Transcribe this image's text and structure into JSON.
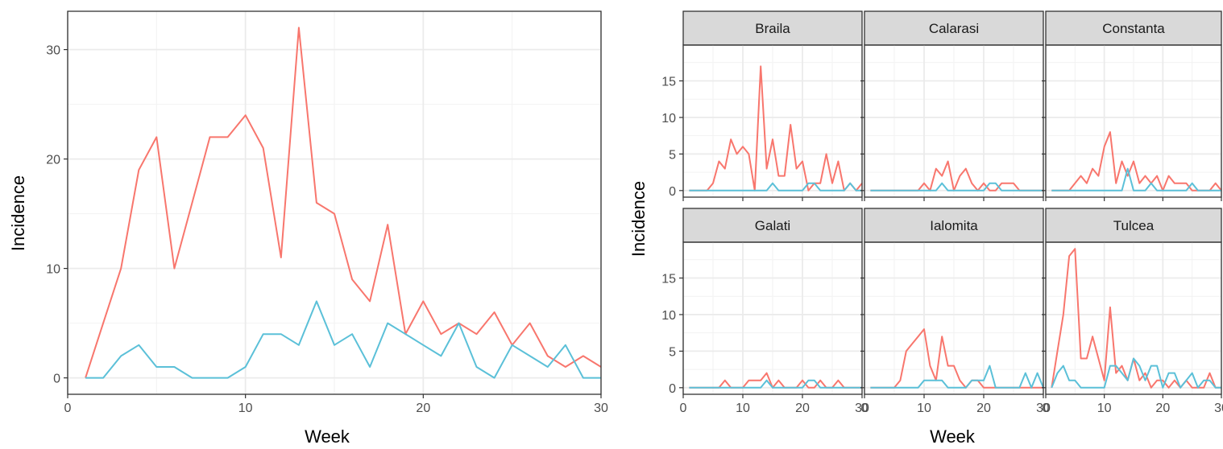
{
  "chart_data": [
    {
      "type": "line",
      "panel": "overall",
      "xlabel": "Week",
      "ylabel": "Incidence",
      "xlim": [
        0,
        30
      ],
      "ylim": [
        0,
        32
      ],
      "x_ticks": [
        0,
        10,
        20,
        30
      ],
      "y_ticks": [
        0,
        10,
        20,
        30
      ],
      "grid": true,
      "x": [
        1,
        2,
        3,
        4,
        5,
        6,
        7,
        8,
        9,
        10,
        11,
        12,
        13,
        14,
        15,
        16,
        17,
        18,
        19,
        20,
        21,
        22,
        23,
        24,
        25,
        26,
        27,
        28,
        29,
        30
      ],
      "series": [
        {
          "color": "#f8766d",
          "values": [
            0,
            5,
            10,
            19,
            22,
            10,
            16,
            22,
            22,
            24,
            21,
            11,
            32,
            16,
            15,
            9,
            7,
            14,
            4,
            7,
            4,
            5,
            4,
            6,
            3,
            5,
            2,
            1,
            2,
            1
          ]
        },
        {
          "color": "#5bc0d8",
          "values": [
            0,
            0,
            2,
            3,
            1,
            1,
            0,
            0,
            0,
            1,
            4,
            4,
            3,
            7,
            3,
            4,
            1,
            5,
            4,
            3,
            2,
            5,
            1,
            0,
            3,
            2,
            1,
            3,
            0,
            0
          ]
        }
      ]
    },
    {
      "type": "line",
      "panel": "faceted",
      "xlabel": "Week",
      "ylabel": "Incidence",
      "xlim": [
        0,
        30
      ],
      "ylim": [
        0,
        19
      ],
      "x_ticks": [
        0,
        10,
        20,
        30
      ],
      "y_ticks": [
        0,
        5,
        10,
        15
      ],
      "grid": true,
      "x": [
        1,
        2,
        3,
        4,
        5,
        6,
        7,
        8,
        9,
        10,
        11,
        12,
        13,
        14,
        15,
        16,
        17,
        18,
        19,
        20,
        21,
        22,
        23,
        24,
        25,
        26,
        27,
        28,
        29,
        30
      ],
      "facets": [
        {
          "label": "Braila",
          "series": [
            {
              "color": "#f8766d",
              "values": [
                0,
                0,
                0,
                0,
                1,
                4,
                3,
                7,
                5,
                6,
                5,
                0,
                17,
                3,
                7,
                2,
                2,
                9,
                3,
                4,
                0,
                1,
                1,
                5,
                1,
                4,
                0,
                1,
                0,
                1
              ]
            },
            {
              "color": "#5bc0d8",
              "values": [
                0,
                0,
                0,
                0,
                0,
                0,
                0,
                0,
                0,
                0,
                0,
                0,
                0,
                0,
                1,
                0,
                0,
                0,
                0,
                0,
                1,
                1,
                0,
                0,
                0,
                0,
                0,
                1,
                0,
                0
              ]
            }
          ]
        },
        {
          "label": "Calarasi",
          "series": [
            {
              "color": "#f8766d",
              "values": [
                0,
                0,
                0,
                0,
                0,
                0,
                0,
                0,
                0,
                1,
                0,
                3,
                2,
                4,
                0,
                2,
                3,
                1,
                0,
                1,
                0,
                0,
                1,
                1,
                1,
                0,
                0,
                0,
                0,
                0
              ]
            },
            {
              "color": "#5bc0d8",
              "values": [
                0,
                0,
                0,
                0,
                0,
                0,
                0,
                0,
                0,
                0,
                0,
                0,
                1,
                0,
                0,
                0,
                0,
                0,
                0,
                0,
                1,
                1,
                0,
                0,
                0,
                0,
                0,
                0,
                0,
                0
              ]
            }
          ]
        },
        {
          "label": "Constanta",
          "series": [
            {
              "color": "#f8766d",
              "values": [
                0,
                0,
                0,
                0,
                1,
                2,
                1,
                3,
                2,
                6,
                8,
                1,
                4,
                2,
                4,
                1,
                2,
                1,
                2,
                0,
                2,
                1,
                1,
                1,
                0,
                0,
                0,
                0,
                1,
                0
              ]
            },
            {
              "color": "#5bc0d8",
              "values": [
                0,
                0,
                0,
                0,
                0,
                0,
                0,
                0,
                0,
                0,
                0,
                0,
                0,
                3,
                0,
                0,
                0,
                1,
                0,
                0,
                0,
                0,
                0,
                0,
                1,
                0,
                0,
                0,
                0,
                0
              ]
            }
          ]
        },
        {
          "label": "Galati",
          "series": [
            {
              "color": "#f8766d",
              "values": [
                0,
                0,
                0,
                0,
                0,
                0,
                1,
                0,
                0,
                0,
                1,
                1,
                1,
                2,
                0,
                1,
                0,
                0,
                0,
                1,
                0,
                0,
                1,
                0,
                0,
                1,
                0,
                0,
                0,
                0
              ]
            },
            {
              "color": "#5bc0d8",
              "values": [
                0,
                0,
                0,
                0,
                0,
                0,
                0,
                0,
                0,
                0,
                0,
                0,
                0,
                1,
                0,
                0,
                0,
                0,
                0,
                0,
                1,
                1,
                0,
                0,
                0,
                0,
                0,
                0,
                0,
                0
              ]
            }
          ]
        },
        {
          "label": "Ialomita",
          "series": [
            {
              "color": "#f8766d",
              "values": [
                0,
                0,
                0,
                0,
                0,
                1,
                5,
                6,
                7,
                8,
                3,
                1,
                7,
                3,
                3,
                1,
                0,
                1,
                1,
                0,
                0,
                0,
                0,
                0,
                0,
                0,
                0,
                0,
                0,
                0
              ]
            },
            {
              "color": "#5bc0d8",
              "values": [
                0,
                0,
                0,
                0,
                0,
                0,
                0,
                0,
                0,
                1,
                1,
                1,
                1,
                0,
                0,
                0,
                0,
                1,
                1,
                1,
                3,
                0,
                0,
                0,
                0,
                0,
                2,
                0,
                2,
                0
              ]
            }
          ]
        },
        {
          "label": "Tulcea",
          "series": [
            {
              "color": "#f8766d",
              "values": [
                0,
                5,
                10,
                18,
                19,
                4,
                4,
                7,
                4,
                1,
                11,
                2,
                3,
                1,
                4,
                1,
                2,
                0,
                1,
                1,
                0,
                1,
                0,
                1,
                0,
                0,
                0,
                2,
                0,
                0
              ]
            },
            {
              "color": "#5bc0d8",
              "values": [
                0,
                2,
                3,
                1,
                1,
                0,
                0,
                0,
                0,
                0,
                3,
                3,
                2,
                1,
                4,
                3,
                1,
                3,
                3,
                0,
                2,
                2,
                0,
                1,
                2,
                0,
                1,
                1,
                0,
                0
              ]
            }
          ]
        }
      ]
    }
  ]
}
